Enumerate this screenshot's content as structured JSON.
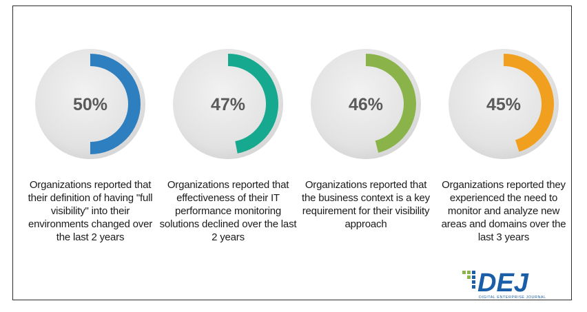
{
  "chart_data": {
    "type": "donut",
    "items": [
      {
        "value": 50,
        "label": "50%",
        "color": "#2e7fbf",
        "caption": "Organizations reported  that their definition of having \"full visibility\" into their environments  changed over the last 2 years"
      },
      {
        "value": 47,
        "label": "47%",
        "color": "#17a98f",
        "caption": "Organizations reported that effectiveness of their IT performance monitoring solutions declined over the last 2 years"
      },
      {
        "value": 46,
        "label": "46%",
        "color": "#8ab44a",
        "caption": "Organizations reported that the business context is a key requirement  for their visibility approach"
      },
      {
        "value": 45,
        "label": "45%",
        "color": "#f0a01e",
        "caption": "Organizations reported they experienced  the need to monitor  and analyze new areas and domains over  the last 3 years"
      }
    ]
  },
  "logo": {
    "text": "DEJ",
    "tagline": "DIGITAL ENTERPRISE JOURNAL",
    "primary_color": "#1a5ea8",
    "accent_color": "#8ab44a"
  }
}
